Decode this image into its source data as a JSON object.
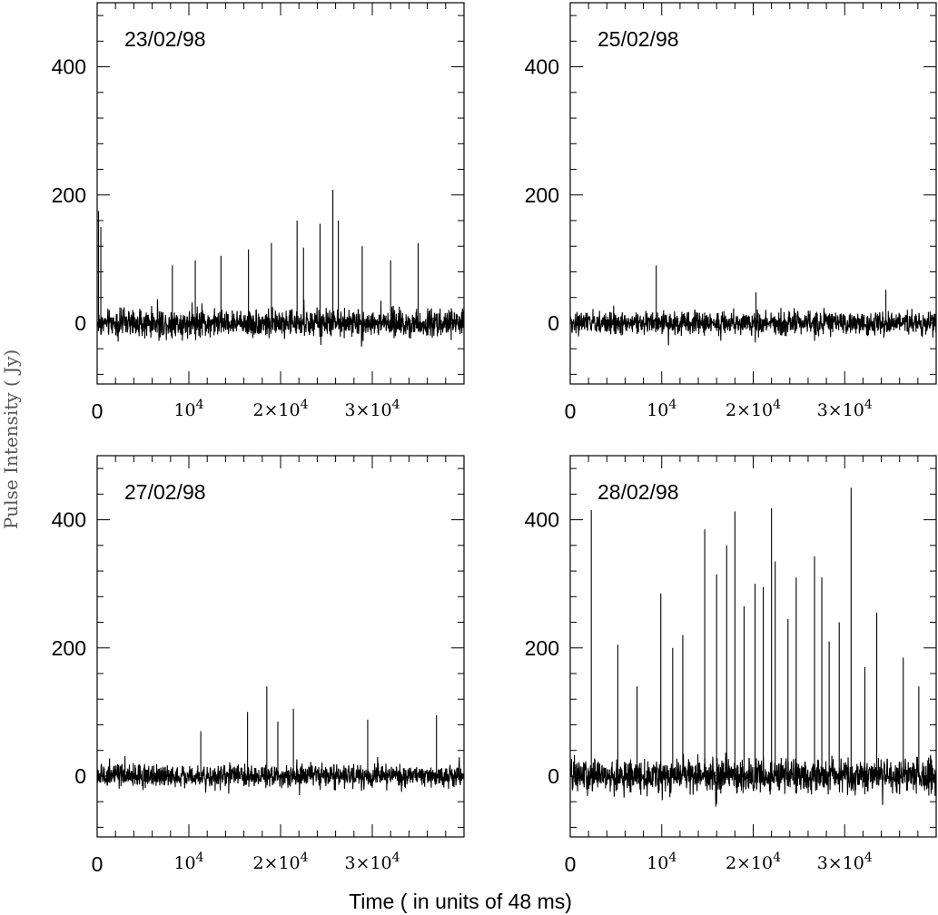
{
  "figure": {
    "ylabel": "Pulse Intensity ( Jy)",
    "xlabel": "Time ( in units of 48 ms)",
    "colors": {
      "trace": "#000000",
      "axes": "#000000",
      "ylabel": "#555555"
    }
  },
  "chart_data": [
    {
      "type": "line",
      "annotation": "23/02/98",
      "xlim": [
        0,
        40000
      ],
      "ylim": [
        -95,
        500
      ],
      "x_ticks": [
        "0",
        "10^4",
        "2×10^4",
        "3×10^4"
      ],
      "y_ticks": [
        "0",
        "200",
        "400"
      ],
      "grid": false,
      "series": [
        {
          "noise_band": [
            -30,
            30
          ],
          "spikes": [
            {
              "x": 150,
              "y": 175
            },
            {
              "x": 400,
              "y": 150
            },
            {
              "x": 8200,
              "y": 90
            },
            {
              "x": 10700,
              "y": 98
            },
            {
              "x": 13500,
              "y": 105
            },
            {
              "x": 16500,
              "y": 115
            },
            {
              "x": 19000,
              "y": 125
            },
            {
              "x": 21800,
              "y": 160
            },
            {
              "x": 22500,
              "y": 118
            },
            {
              "x": 24300,
              "y": 155
            },
            {
              "x": 25700,
              "y": 208
            },
            {
              "x": 26300,
              "y": 160
            },
            {
              "x": 28900,
              "y": 120
            },
            {
              "x": 32000,
              "y": 98
            },
            {
              "x": 35000,
              "y": 125
            }
          ]
        }
      ]
    },
    {
      "type": "line",
      "annotation": "25/02/98",
      "xlim": [
        0,
        40000
      ],
      "ylim": [
        -95,
        500
      ],
      "x_ticks": [
        "0",
        "10^4",
        "2×10^4",
        "3×10^4"
      ],
      "y_ticks": [
        "0",
        "200",
        "400"
      ],
      "grid": false,
      "series": [
        {
          "noise_band": [
            -25,
            25
          ],
          "spikes": [
            {
              "x": 9400,
              "y": 90
            },
            {
              "x": 20300,
              "y": 48
            },
            {
              "x": 34500,
              "y": 52
            }
          ]
        }
      ]
    },
    {
      "type": "line",
      "annotation": "27/02/98",
      "xlim": [
        0,
        40000
      ],
      "ylim": [
        -95,
        500
      ],
      "x_ticks": [
        "0",
        "10^4",
        "2×10^4",
        "3×10^4"
      ],
      "y_ticks": [
        "0",
        "200",
        "400"
      ],
      "grid": false,
      "series": [
        {
          "noise_band": [
            -25,
            25
          ],
          "spikes": [
            {
              "x": 11300,
              "y": 70
            },
            {
              "x": 16400,
              "y": 100
            },
            {
              "x": 18500,
              "y": 140
            },
            {
              "x": 19700,
              "y": 85
            },
            {
              "x": 21400,
              "y": 105
            },
            {
              "x": 29500,
              "y": 88
            },
            {
              "x": 37000,
              "y": 95
            }
          ]
        }
      ]
    },
    {
      "type": "line",
      "annotation": "28/02/98",
      "xlim": [
        0,
        40000
      ],
      "ylim": [
        -95,
        500
      ],
      "x_ticks": [
        "0",
        "10^4",
        "2×10^4",
        "3×10^4"
      ],
      "y_ticks": [
        "0",
        "200",
        "400"
      ],
      "grid": false,
      "series": [
        {
          "noise_band": [
            -38,
            38
          ],
          "spikes": [
            {
              "x": 2300,
              "y": 415
            },
            {
              "x": 5200,
              "y": 205
            },
            {
              "x": 7300,
              "y": 140
            },
            {
              "x": 9900,
              "y": 285
            },
            {
              "x": 11200,
              "y": 200
            },
            {
              "x": 12300,
              "y": 220
            },
            {
              "x": 14700,
              "y": 385
            },
            {
              "x": 16000,
              "y": 315
            },
            {
              "x": 17100,
              "y": 360
            },
            {
              "x": 18000,
              "y": 413
            },
            {
              "x": 19000,
              "y": 265
            },
            {
              "x": 20200,
              "y": 300
            },
            {
              "x": 21100,
              "y": 295
            },
            {
              "x": 22000,
              "y": 418
            },
            {
              "x": 22400,
              "y": 335
            },
            {
              "x": 23800,
              "y": 245
            },
            {
              "x": 24700,
              "y": 310
            },
            {
              "x": 26700,
              "y": 343
            },
            {
              "x": 27500,
              "y": 310
            },
            {
              "x": 28300,
              "y": 210
            },
            {
              "x": 29400,
              "y": 240
            },
            {
              "x": 30700,
              "y": 450
            },
            {
              "x": 32200,
              "y": 170
            },
            {
              "x": 33500,
              "y": 255
            },
            {
              "x": 36400,
              "y": 185
            },
            {
              "x": 38100,
              "y": 140
            }
          ]
        }
      ]
    }
  ]
}
